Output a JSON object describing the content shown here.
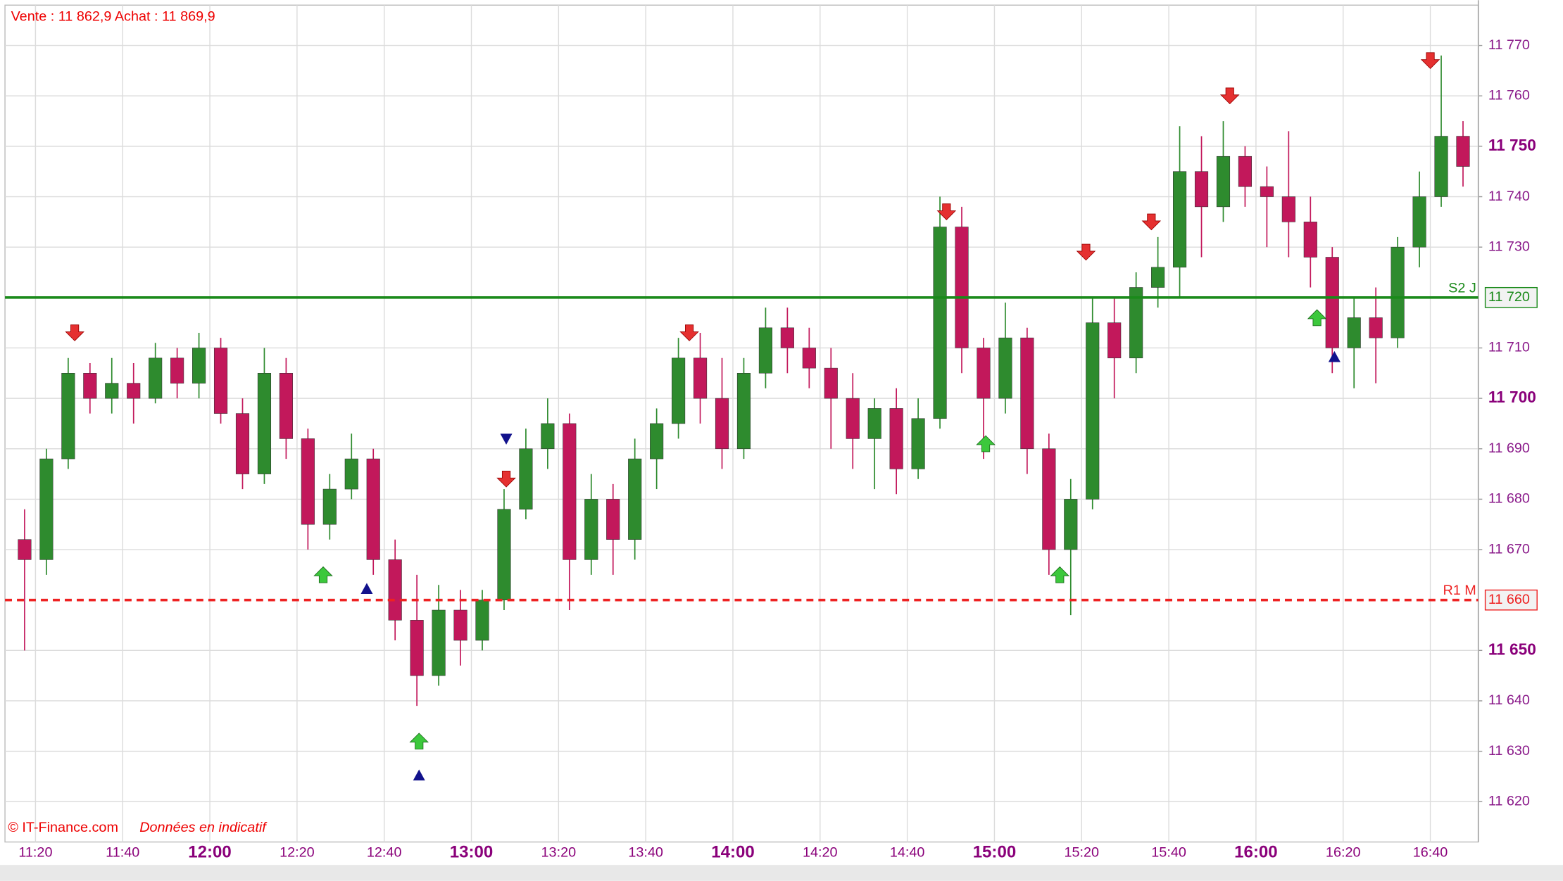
{
  "header": {
    "quote": "Vente : 11 862,9 Achat : 11 869,9"
  },
  "footer": {
    "copyright": "© IT-Finance.com",
    "note": "Données en indicatif"
  },
  "chart_data": {
    "type": "candlestick",
    "x": [
      "11:15",
      "11:20",
      "11:25",
      "11:30",
      "11:35",
      "11:40",
      "11:45",
      "11:50",
      "11:55",
      "12:00",
      "12:05",
      "12:10",
      "12:15",
      "12:20",
      "12:25",
      "12:30",
      "12:35",
      "12:40",
      "12:45",
      "12:50",
      "12:55",
      "13:00",
      "13:05",
      "13:10",
      "13:15",
      "13:20",
      "13:25",
      "13:30",
      "13:35",
      "13:40",
      "13:45",
      "13:50",
      "13:55",
      "14:00",
      "14:05",
      "14:10",
      "14:15",
      "14:20",
      "14:25",
      "14:30",
      "14:35",
      "14:40",
      "14:45",
      "14:50",
      "14:55",
      "15:00",
      "15:05",
      "15:10",
      "15:15",
      "15:20",
      "15:25",
      "15:30",
      "15:35",
      "15:40",
      "15:45",
      "15:50",
      "15:55",
      "16:00",
      "16:05",
      "16:10",
      "16:15",
      "16:20",
      "16:25",
      "16:30",
      "16:35",
      "16:40",
      "16:45"
    ],
    "open": [
      11672,
      11668,
      11688,
      11705,
      11700,
      11703,
      11700,
      11708,
      11703,
      11710,
      11697,
      11685,
      11705,
      11692,
      11675,
      11682,
      11688,
      11668,
      11656,
      11645,
      11658,
      11652,
      11660,
      11678,
      11690,
      11695,
      11668,
      11680,
      11672,
      11688,
      11695,
      11708,
      11700,
      11690,
      11705,
      11714,
      11710,
      11706,
      11700,
      11692,
      11698,
      11686,
      11696,
      11734,
      11710,
      11700,
      11712,
      11690,
      11670,
      11680,
      11715,
      11708,
      11722,
      11726,
      11745,
      11738,
      11748,
      11742,
      11740,
      11735,
      11728,
      11710,
      11716,
      11712,
      11730,
      11740,
      11752
    ],
    "high": [
      11678,
      11690,
      11708,
      11707,
      11708,
      11707,
      11711,
      11710,
      11713,
      11712,
      11700,
      11710,
      11708,
      11694,
      11685,
      11693,
      11690,
      11672,
      11665,
      11663,
      11662,
      11662,
      11682,
      11694,
      11700,
      11697,
      11685,
      11683,
      11692,
      11698,
      11712,
      11713,
      11708,
      11708,
      11718,
      11718,
      11714,
      11710,
      11705,
      11700,
      11702,
      11700,
      11740,
      11738,
      11712,
      11719,
      11714,
      11693,
      11684,
      11720,
      11720,
      11725,
      11732,
      11754,
      11752,
      11755,
      11750,
      11746,
      11753,
      11740,
      11730,
      11720,
      11722,
      11732,
      11745,
      11768,
      11755
    ],
    "low": [
      11650,
      11665,
      11686,
      11697,
      11697,
      11695,
      11699,
      11700,
      11700,
      11695,
      11682,
      11683,
      11688,
      11670,
      11672,
      11680,
      11665,
      11652,
      11639,
      11643,
      11647,
      11650,
      11658,
      11676,
      11686,
      11658,
      11665,
      11665,
      11668,
      11682,
      11692,
      11695,
      11686,
      11688,
      11702,
      11705,
      11702,
      11690,
      11686,
      11682,
      11681,
      11684,
      11694,
      11705,
      11688,
      11697,
      11685,
      11665,
      11657,
      11678,
      11700,
      11705,
      11718,
      11720,
      11728,
      11735,
      11738,
      11730,
      11728,
      11722,
      11705,
      11702,
      11703,
      11710,
      11726,
      11738,
      11742
    ],
    "close": [
      11668,
      11688,
      11705,
      11700,
      11703,
      11700,
      11708,
      11703,
      11710,
      11697,
      11685,
      11705,
      11692,
      11675,
      11682,
      11688,
      11668,
      11656,
      11645,
      11658,
      11652,
      11660,
      11678,
      11690,
      11695,
      11668,
      11680,
      11672,
      11688,
      11695,
      11708,
      11700,
      11690,
      11705,
      11714,
      11710,
      11706,
      11700,
      11692,
      11698,
      11686,
      11696,
      11734,
      11710,
      11700,
      11712,
      11690,
      11670,
      11680,
      11715,
      11708,
      11722,
      11726,
      11745,
      11738,
      11748,
      11742,
      11740,
      11735,
      11728,
      11710,
      11716,
      11712,
      11730,
      11740,
      11752,
      11746
    ],
    "up_color": "#2e8b2e",
    "down_color": "#c2185b",
    "xlim": [
      "11:13",
      "16:51"
    ],
    "xticks": [
      "11:20",
      "11:40",
      "12:00",
      "12:20",
      "12:40",
      "13:00",
      "13:20",
      "13:40",
      "14:00",
      "14:20",
      "14:40",
      "15:00",
      "15:20",
      "15:40",
      "16:00",
      "16:20",
      "16:40"
    ],
    "ylim": [
      11612,
      11778
    ],
    "yticks": [
      {
        "value": 11620,
        "label": "11 620"
      },
      {
        "value": 11630,
        "label": "11 630"
      },
      {
        "value": 11640,
        "label": "11 640"
      },
      {
        "value": 11650,
        "label": "11 650"
      },
      {
        "value": 11670,
        "label": "11 670"
      },
      {
        "value": 11680,
        "label": "11 680"
      },
      {
        "value": 11690,
        "label": "11 690"
      },
      {
        "value": 11700,
        "label": "11 700"
      },
      {
        "value": 11710,
        "label": "11 710"
      },
      {
        "value": 11730,
        "label": "11 730"
      },
      {
        "value": 11740,
        "label": "11 740"
      },
      {
        "value": 11750,
        "label": "11 750"
      },
      {
        "value": 11760,
        "label": "11 760"
      },
      {
        "value": 11770,
        "label": "11 770"
      }
    ],
    "grid": true,
    "levels": [
      {
        "name": "S2 J",
        "value": 11720,
        "label": "11 720",
        "color": "#1a8a1a",
        "style": "solid"
      },
      {
        "name": "R1 M",
        "value": 11660,
        "label": "11 660",
        "color": "#ee2222",
        "style": "dashed"
      }
    ],
    "signals": [
      {
        "x": "11:29",
        "y": 11713,
        "kind": "sell"
      },
      {
        "x": "13:08",
        "y": 11684,
        "kind": "sell"
      },
      {
        "x": "13:50",
        "y": 11713,
        "kind": "sell"
      },
      {
        "x": "14:49",
        "y": 11737,
        "kind": "sell"
      },
      {
        "x": "15:21",
        "y": 11729,
        "kind": "sell"
      },
      {
        "x": "15:36",
        "y": 11735,
        "kind": "sell"
      },
      {
        "x": "15:54",
        "y": 11760,
        "kind": "sell"
      },
      {
        "x": "16:40",
        "y": 11767,
        "kind": "sell"
      },
      {
        "x": "12:26",
        "y": 11665,
        "kind": "buy"
      },
      {
        "x": "12:48",
        "y": 11632,
        "kind": "buy"
      },
      {
        "x": "14:58",
        "y": 11691,
        "kind": "buy"
      },
      {
        "x": "15:15",
        "y": 11665,
        "kind": "buy"
      },
      {
        "x": "16:14",
        "y": 11716,
        "kind": "buy"
      },
      {
        "x": "12:36",
        "y": 11662,
        "kind": "up"
      },
      {
        "x": "12:48",
        "y": 11625,
        "kind": "up"
      },
      {
        "x": "16:18",
        "y": 11708,
        "kind": "up"
      },
      {
        "x": "13:08",
        "y": 11692,
        "kind": "down"
      }
    ]
  }
}
